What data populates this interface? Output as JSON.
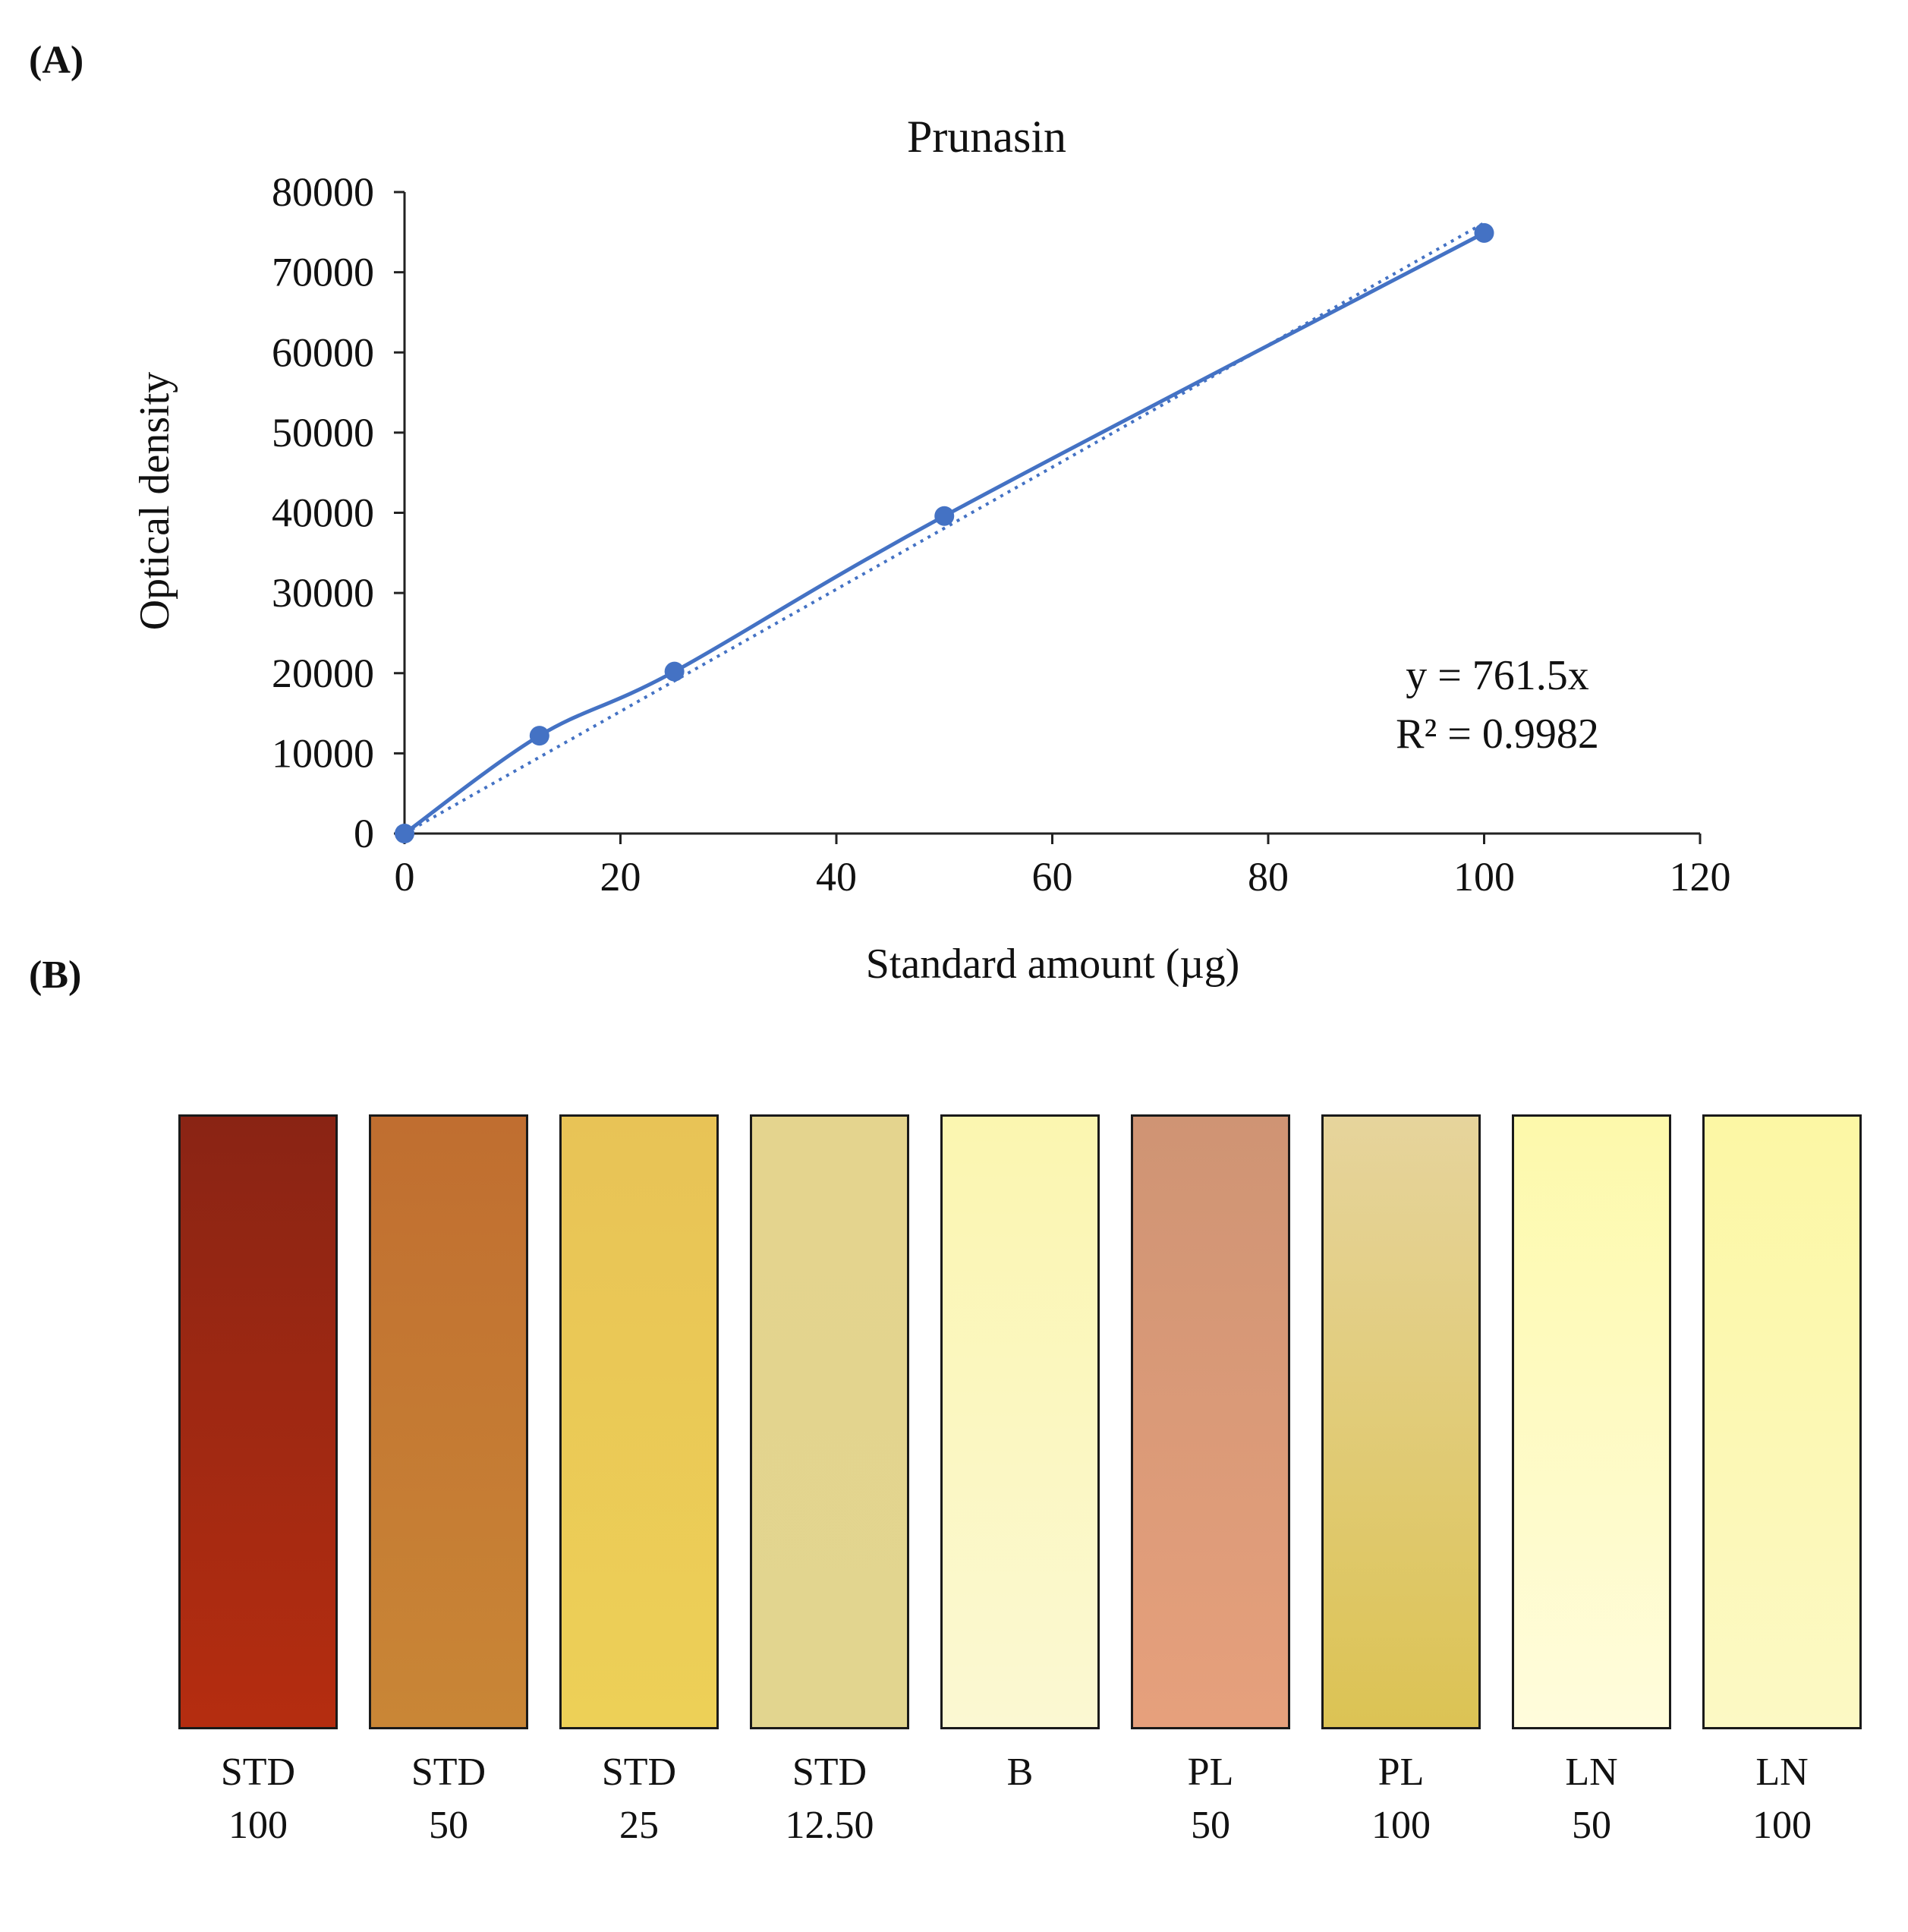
{
  "panels": {
    "a": "(A)",
    "b": "(B)"
  },
  "chart_data": {
    "type": "scatter",
    "title": "Prunasin",
    "xlabel": "Standard amount (µg)",
    "ylabel": "Optical density",
    "xlim": [
      0,
      120
    ],
    "ylim": [
      0,
      80000
    ],
    "xticks": [
      0,
      20,
      40,
      60,
      80,
      100,
      120
    ],
    "yticks": [
      0,
      10000,
      20000,
      30000,
      40000,
      50000,
      60000,
      70000,
      80000
    ],
    "series": [
      {
        "name": "Prunasin",
        "x": [
          0,
          12.5,
          25,
          50,
          100
        ],
        "y": [
          0,
          12200,
          20200,
          39600,
          74900
        ],
        "color": "#4472c4",
        "style": "smoothed line with markers"
      }
    ],
    "trendline": {
      "type": "linear",
      "slope": 761.5,
      "intercept": 0,
      "style": "dotted",
      "color": "#4472c4"
    },
    "annotations": [
      "y = 761.5x",
      "R² = 0.9982"
    ]
  },
  "strips": [
    {
      "name": "STD",
      "value": "100",
      "top": "#8a2414",
      "bottom": "#b52d10"
    },
    {
      "name": "STD",
      "value": "50",
      "top": "#c06e30",
      "bottom": "#c98636"
    },
    {
      "name": "STD",
      "value": "25",
      "top": "#e8c356",
      "bottom": "#edd057"
    },
    {
      "name": "STD",
      "value": "12.50",
      "top": "#e4d48e",
      "bottom": "#e2d58f"
    },
    {
      "name": "B",
      "value": "",
      "top": "#fbf6b0",
      "bottom": "#fbf8d2"
    },
    {
      "name": "PL",
      "value": "50",
      "top": "#cf9474",
      "bottom": "#e6a07c"
    },
    {
      "name": "PL",
      "value": "100",
      "top": "#e6d49c",
      "bottom": "#dcc354"
    },
    {
      "name": "LN",
      "value": "50",
      "top": "#fdf9ab",
      "bottom": "#fffcdc"
    },
    {
      "name": "LN",
      "value": "100",
      "top": "#fcf7a4",
      "bottom": "#fcf9c4"
    }
  ]
}
